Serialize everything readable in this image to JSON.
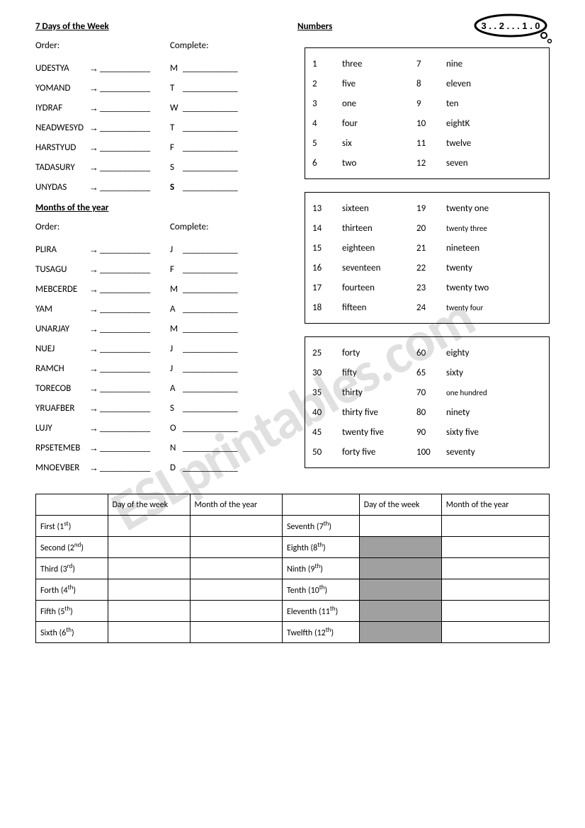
{
  "headings": {
    "days": "7 Days of the Week",
    "numbers": "Numbers",
    "months": "Months of the year"
  },
  "labels": {
    "order": "Order:",
    "complete": "Complete:"
  },
  "days": {
    "scrambles": [
      "UDESTYA",
      "YOMAND",
      "IYDRAF",
      "NEADWESYD",
      "HARSTYUD",
      "TADASURY",
      "UNYDAS"
    ],
    "completes": [
      "M",
      "T",
      "W",
      "T",
      "F",
      "S",
      "S"
    ]
  },
  "months": {
    "scrambles": [
      "PLIRA",
      "TUSAGU",
      "MEBCERDE",
      "YAM",
      "UNARJAY",
      "NUEJ",
      "RAMCH",
      "TORECOB",
      "YRUAFBER",
      "LUJY",
      "RPSETEMEB",
      "MNOEVBER"
    ],
    "completes": [
      "J",
      "F",
      "M",
      "A",
      "M",
      "J",
      "J",
      "A",
      "S",
      "O",
      "N",
      "D"
    ]
  },
  "blank": "___________",
  "blank_long": "____________",
  "arrow": "→",
  "numberBoxes": [
    {
      "rows": [
        {
          "a": "1",
          "b": "three",
          "c": "7",
          "d": "nine",
          "small": false
        },
        {
          "a": "2",
          "b": "five",
          "c": "8",
          "d": "eleven",
          "small": false
        },
        {
          "a": "3",
          "b": "one",
          "c": "9",
          "d": "ten",
          "small": false
        },
        {
          "a": "4",
          "b": "four",
          "c": "10",
          "d": "eightK",
          "small": false
        },
        {
          "a": "5",
          "b": "six",
          "c": "11",
          "d": "twelve",
          "small": false
        },
        {
          "a": "6",
          "b": "two",
          "c": "12",
          "d": "seven",
          "small": false
        }
      ]
    },
    {
      "rows": [
        {
          "a": "13",
          "b": "sixteen",
          "c": "19",
          "d": "twenty one",
          "small": false
        },
        {
          "a": "14",
          "b": "thirteen",
          "c": "20",
          "d": "twenty three",
          "small": true
        },
        {
          "a": "15",
          "b": "eighteen",
          "c": "21",
          "d": "nineteen",
          "small": false
        },
        {
          "a": "16",
          "b": "seventeen",
          "c": "22",
          "d": "twenty",
          "small": false
        },
        {
          "a": "17",
          "b": "fourteen",
          "c": "23",
          "d": "twenty two",
          "small": false
        },
        {
          "a": "18",
          "b": "fifteen",
          "c": "24",
          "d": "twenty four",
          "small": true
        }
      ]
    },
    {
      "rows": [
        {
          "a": "25",
          "b": "forty",
          "c": "60",
          "d": "eighty",
          "small": false
        },
        {
          "a": "30",
          "b": "fifty",
          "c": "65",
          "d": "sixty",
          "small": false
        },
        {
          "a": "35",
          "b": "thirty",
          "c": "70",
          "d": "one hundred",
          "small": true
        },
        {
          "a": "40",
          "b": "thirty five",
          "c": "80",
          "d": "ninety",
          "small": false
        },
        {
          "a": "45",
          "b": "twenty five",
          "c": "90",
          "d": "sixty five",
          "small": false
        },
        {
          "a": "50",
          "b": "forty five",
          "c": "100",
          "d": "seventy",
          "small": false
        }
      ]
    }
  ],
  "bottomTable": {
    "headers": [
      "",
      "Day of the week",
      "Month of the year",
      "",
      "Day of the week",
      "Month of the year"
    ],
    "rows": [
      {
        "l": "First (1",
        "ls": "st",
        "r": "Seventh (7",
        "rs": "th",
        "grey": false
      },
      {
        "l": "Second (2",
        "ls": "nd",
        "r": "Eighth (8",
        "rs": "th",
        "grey": true
      },
      {
        "l": "Third (3",
        "ls": "rd",
        "r": "Ninth (9",
        "rs": "th",
        "grey": true
      },
      {
        "l": "Forth (4",
        "ls": "th",
        "r": "Tenth (10",
        "rs": "th",
        "grey": true
      },
      {
        "l": "Fifth (5",
        "ls": "th",
        "r": "Eleventh (11",
        "rs": "th",
        "grey": true
      },
      {
        "l": "Sixth (6",
        "ls": "th",
        "r": "Twelfth (12",
        "rs": "th",
        "grey": true
      }
    ]
  },
  "bubble": {
    "text": "3 . . 2 . . . 1 .  0"
  },
  "watermark": "ESLprintables.com"
}
